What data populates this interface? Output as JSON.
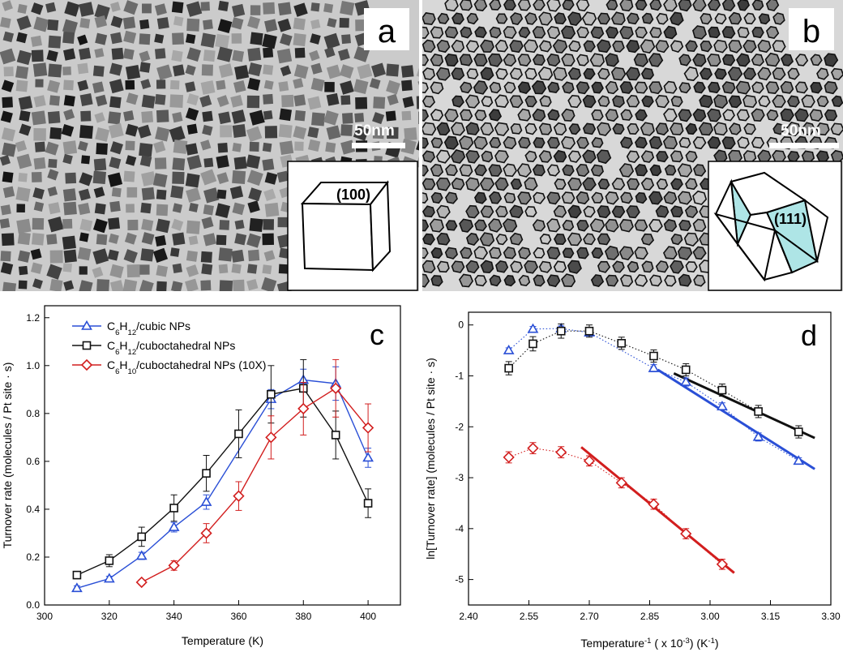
{
  "tem_panels": [
    {
      "letter": "a",
      "scale_label": "50nm",
      "facet_label": "(100)",
      "inset_shape": "cube"
    },
    {
      "letter": "b",
      "scale_label": "50nm",
      "facet_label": "(111)",
      "inset_shape": "cuboctahedron"
    }
  ],
  "colors": {
    "blue": "#2a4fd6",
    "black": "#111111",
    "red": "#d21e1e",
    "facet_fill": "#aee5e6"
  },
  "chart_data": [
    {
      "panel": "c",
      "type": "line",
      "xlabel": "Temperature (K)",
      "ylabel": "Turnover rate (molecules / Pt site · s)",
      "xlim": [
        300,
        410
      ],
      "ylim": [
        0,
        1.25
      ],
      "xticks": [
        300,
        320,
        340,
        360,
        380,
        400
      ],
      "xtick_labels": [
        "300",
        "320",
        "340",
        "360",
        "380",
        "400"
      ],
      "yticks": [
        0,
        0.2,
        0.4,
        0.6,
        0.8,
        1.0,
        1.2
      ],
      "ytick_labels": [
        "0.0",
        "0.2",
        "0.4",
        "0.6",
        "0.8",
        "1.0",
        "1.2"
      ],
      "legend_position": "top-left",
      "series": [
        {
          "name_main": "C",
          "name_parts": [
            [
              "6",
              "sub"
            ],
            [
              "H",
              ""
            ],
            [
              "12",
              "sub"
            ],
            [
              "/cubic NPs",
              ""
            ]
          ],
          "color": "#2a4fd6",
          "marker": "triangle",
          "x": [
            310,
            320,
            330,
            340,
            350,
            370,
            380,
            390,
            400
          ],
          "y": [
            0.07,
            0.11,
            0.205,
            0.325,
            0.43,
            0.86,
            0.94,
            0.925,
            0.615
          ],
          "err": [
            0.01,
            0.01,
            0.015,
            0.02,
            0.03,
            0.04,
            0.045,
            0.07,
            0.04
          ]
        },
        {
          "name_main": "C",
          "name_parts": [
            [
              "6",
              "sub"
            ],
            [
              "H",
              ""
            ],
            [
              "12",
              "sub"
            ],
            [
              "/cuboctahedral NPs",
              ""
            ]
          ],
          "color": "#111111",
          "marker": "square",
          "x": [
            310,
            320,
            330,
            340,
            350,
            360,
            370,
            380,
            390,
            400
          ],
          "y": [
            0.125,
            0.185,
            0.285,
            0.405,
            0.55,
            0.715,
            0.88,
            0.905,
            0.71,
            0.425
          ],
          "err": [
            0.015,
            0.025,
            0.04,
            0.055,
            0.075,
            0.1,
            0.12,
            0.12,
            0.1,
            0.06
          ]
        },
        {
          "name_main": "C",
          "name_parts": [
            [
              "6",
              "sub"
            ],
            [
              "H",
              ""
            ],
            [
              "10",
              "sub"
            ],
            [
              "/cuboctahedral NPs (10X)",
              ""
            ]
          ],
          "color": "#d21e1e",
          "marker": "diamond",
          "x": [
            330,
            340,
            350,
            360,
            370,
            380,
            390,
            400
          ],
          "y": [
            0.095,
            0.165,
            0.3,
            0.455,
            0.7,
            0.82,
            0.905,
            0.74
          ],
          "err": [
            0.01,
            0.02,
            0.04,
            0.06,
            0.09,
            0.11,
            0.12,
            0.1
          ]
        }
      ]
    },
    {
      "panel": "d",
      "type": "line",
      "xlabel_parts": [
        [
          "Temperature",
          ""
        ],
        [
          "-1",
          "sup"
        ],
        [
          " ( x 10",
          ""
        ],
        [
          "-3",
          "sup"
        ],
        [
          ") (K",
          ""
        ],
        [
          "-1",
          "sup"
        ],
        [
          ")",
          ""
        ]
      ],
      "ylabel": "ln[Turnover rate] (molecules / Pt site · s)",
      "xlim": [
        2.4,
        3.3
      ],
      "ylim": [
        -5.5,
        0.25
      ],
      "xticks": [
        2.4,
        2.55,
        2.7,
        2.85,
        3.0,
        3.15,
        3.3
      ],
      "xtick_labels": [
        "2.40",
        "2.55",
        "2.70",
        "2.85",
        "3.00",
        "3.15",
        "3.30"
      ],
      "yticks": [
        0,
        -1,
        -2,
        -3,
        -4,
        -5
      ],
      "ytick_labels": [
        "0",
        "-1",
        "-2",
        "-3",
        "-4",
        "-5"
      ],
      "series": [
        {
          "color": "#2a4fd6",
          "marker": "triangle",
          "x": [
            2.5,
            2.56,
            2.63,
            2.7,
            2.86,
            2.94,
            3.03,
            3.12,
            3.22
          ],
          "y": [
            -0.5,
            -0.08,
            -0.07,
            -0.15,
            -0.85,
            -1.12,
            -1.6,
            -2.2,
            -2.67
          ],
          "err": [
            0.05,
            0.05,
            0.05,
            0.05,
            0.07,
            0.08,
            0.07,
            0.08,
            0.06
          ]
        },
        {
          "color": "#111111",
          "marker": "square",
          "x": [
            2.5,
            2.56,
            2.63,
            2.7,
            2.78,
            2.86,
            2.94,
            3.03,
            3.12,
            3.22
          ],
          "y": [
            -0.85,
            -0.37,
            -0.12,
            -0.12,
            -0.36,
            -0.61,
            -0.88,
            -1.28,
            -1.7,
            -2.1
          ],
          "err": [
            0.13,
            0.14,
            0.14,
            0.12,
            0.12,
            0.12,
            0.12,
            0.12,
            0.12,
            0.12
          ]
        },
        {
          "color": "#d21e1e",
          "marker": "diamond",
          "x": [
            2.5,
            2.56,
            2.63,
            2.7,
            2.78,
            2.86,
            2.94,
            3.03
          ],
          "y": [
            -2.6,
            -2.42,
            -2.5,
            -2.67,
            -3.1,
            -3.52,
            -4.1,
            -4.7
          ],
          "err": [
            0.11,
            0.11,
            0.11,
            0.1,
            0.1,
            0.1,
            0.1,
            0.1
          ]
        }
      ],
      "fit_lines": [
        {
          "color": "#2a4fd6",
          "x": [
            2.87,
            3.26
          ],
          "y": [
            -0.88,
            -2.83
          ]
        },
        {
          "color": "#111111",
          "x": [
            2.91,
            3.26
          ],
          "y": [
            -0.95,
            -2.22
          ]
        },
        {
          "color": "#d21e1e",
          "x": [
            2.68,
            3.06
          ],
          "y": [
            -2.4,
            -4.87
          ]
        }
      ]
    }
  ]
}
